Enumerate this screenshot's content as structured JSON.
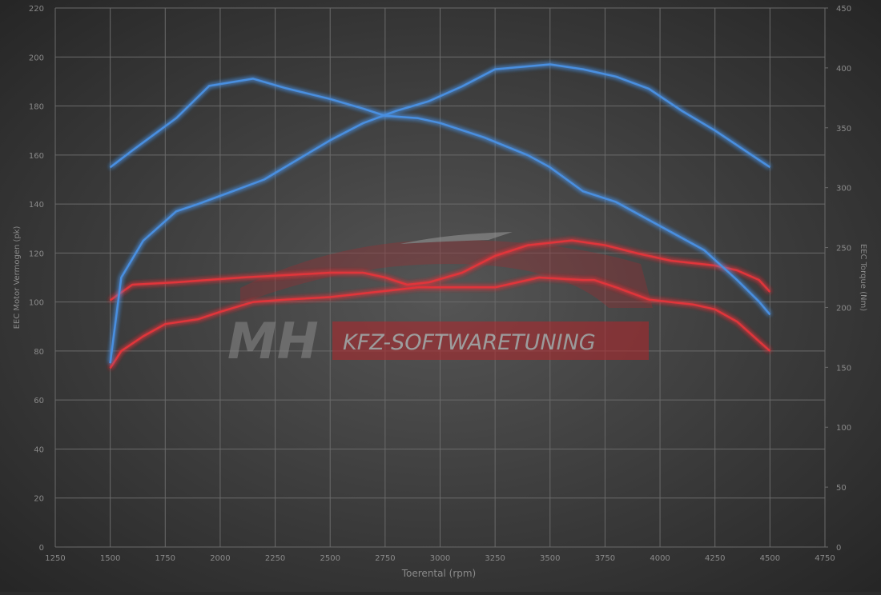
{
  "chart_data": {
    "type": "line",
    "xlabel": "Toerental (rpm)",
    "ylabel": "EEC Motor Vermogen (pk)",
    "y2label": "EEC Torque (Nm)",
    "watermark": [
      "MH",
      "KFZ-SOFTWARETUNING"
    ],
    "xlim": [
      1250,
      4750
    ],
    "xticks": [
      1250,
      1500,
      1750,
      2000,
      2250,
      2500,
      2750,
      3000,
      3250,
      3500,
      3750,
      4000,
      4250,
      4500,
      4750
    ],
    "ylim": [
      0,
      220
    ],
    "yticks": [
      0,
      20,
      40,
      60,
      80,
      100,
      120,
      140,
      160,
      180,
      200,
      220
    ],
    "y2lim": [
      0,
      450
    ],
    "y2ticks": [
      0,
      50,
      100,
      150,
      200,
      250,
      300,
      350,
      400,
      450
    ],
    "grid": true,
    "series": [
      {
        "color": "#e0343a",
        "axis": "y",
        "x": [
          1500,
          1550,
          1650,
          1750,
          1900,
          2000,
          2150,
          2300,
          2500,
          2700,
          2900,
          3100,
          3250,
          3450,
          3650,
          3700,
          3800,
          3950,
          4150,
          4250,
          4350,
          4450,
          4500
        ],
        "values": [
          73,
          80,
          86,
          91,
          93,
          96,
          100,
          101,
          102,
          104,
          106,
          106,
          106,
          110,
          109,
          109,
          106,
          101,
          99,
          97,
          92,
          84,
          80
        ]
      },
      {
        "color": "#e0343a",
        "axis": "y2",
        "x": [
          1500,
          1600,
          1800,
          2100,
          2300,
          2500,
          2650,
          2750,
          2850,
          2950,
          3100,
          3250,
          3400,
          3600,
          3750,
          3900,
          4050,
          4250,
          4350,
          4450,
          4500
        ],
        "values": [
          206,
          219,
          221,
          225,
          227,
          229,
          229,
          225,
          219,
          221,
          229,
          243,
          252,
          256,
          252,
          245,
          239,
          235,
          231,
          223,
          213
        ]
      },
      {
        "color": "#4a8fe0",
        "axis": "y",
        "x": [
          1500,
          1550,
          1650,
          1800,
          1900,
          2050,
          2200,
          2350,
          2500,
          2650,
          2800,
          2950,
          3100,
          3250,
          3500,
          3650,
          3800,
          3950,
          4100,
          4250,
          4350,
          4450,
          4500
        ],
        "values": [
          75,
          110,
          125,
          137,
          140,
          145,
          150,
          158,
          166,
          173,
          178,
          182,
          188,
          195,
          197,
          195,
          192,
          187,
          178,
          170,
          164,
          158,
          155
        ]
      },
      {
        "color": "#4a8fe0",
        "axis": "y2",
        "x": [
          1500,
          1600,
          1800,
          1950,
          2150,
          2300,
          2500,
          2650,
          2750,
          2900,
          3000,
          3200,
          3400,
          3500,
          3650,
          3800,
          4000,
          4200,
          4350,
          4450,
          4500
        ],
        "values": [
          317,
          331,
          358,
          385,
          391,
          383,
          374,
          366,
          360,
          358,
          354,
          342,
          327,
          317,
          297,
          288,
          268,
          248,
          223,
          205,
          194
        ]
      }
    ]
  }
}
